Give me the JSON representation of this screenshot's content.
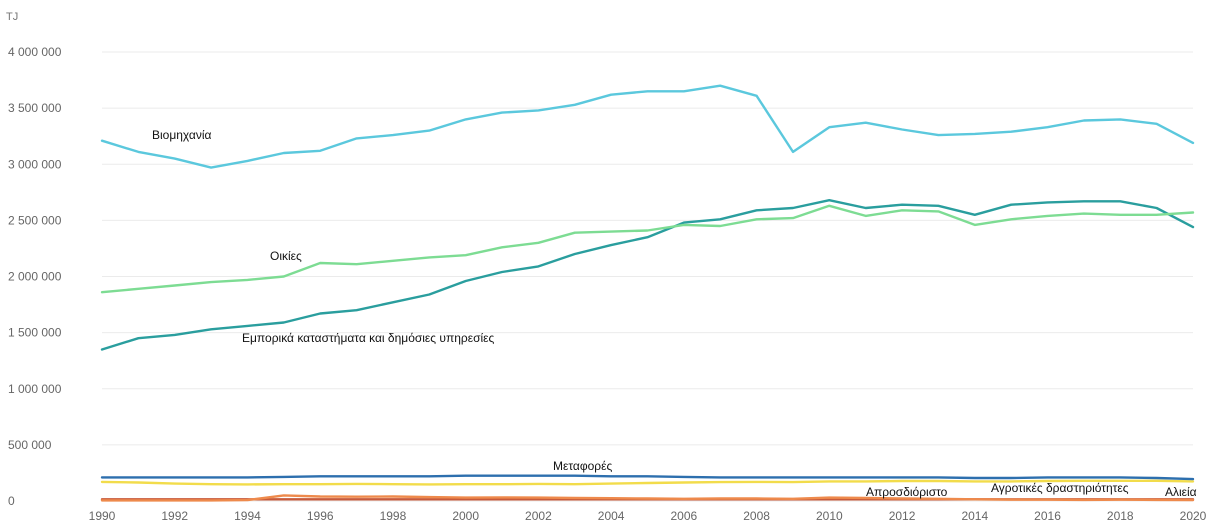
{
  "chart_data": {
    "type": "line",
    "unit_label": "TJ",
    "x": [
      1990,
      1991,
      1992,
      1993,
      1994,
      1995,
      1996,
      1997,
      1998,
      1999,
      2000,
      2001,
      2002,
      2003,
      2004,
      2005,
      2006,
      2007,
      2008,
      2009,
      2010,
      2011,
      2012,
      2013,
      2014,
      2015,
      2016,
      2017,
      2018,
      2019,
      2020
    ],
    "x_ticks": [
      "1990",
      "1992",
      "1994",
      "1996",
      "1998",
      "2000",
      "2002",
      "2004",
      "2006",
      "2008",
      "2010",
      "2012",
      "2014",
      "2016",
      "2018",
      "2020"
    ],
    "y_ticks": [
      "0",
      "500 000",
      "1 000 000",
      "1 500 000",
      "2 000 000",
      "2 500 000",
      "3 000 000",
      "3 500 000",
      "4 000 000"
    ],
    "ylim": [
      0,
      4000000
    ],
    "grid": true,
    "series": [
      {
        "name": "Βιομηχανία",
        "color": "#5bc8dd",
        "values": [
          3210000,
          3110000,
          3050000,
          2970000,
          3030000,
          3100000,
          3120000,
          3230000,
          3260000,
          3300000,
          3400000,
          3460000,
          3480000,
          3530000,
          3620000,
          3650000,
          3650000,
          3700000,
          3610000,
          3110000,
          3330000,
          3370000,
          3310000,
          3260000,
          3270000,
          3290000,
          3330000,
          3390000,
          3400000,
          3360000,
          3190000
        ]
      },
      {
        "name": "Οικίες",
        "color": "#7ddc93",
        "values": [
          1860000,
          1890000,
          1920000,
          1950000,
          1970000,
          2000000,
          2120000,
          2110000,
          2140000,
          2170000,
          2190000,
          2260000,
          2300000,
          2390000,
          2400000,
          2410000,
          2460000,
          2450000,
          2510000,
          2520000,
          2630000,
          2540000,
          2590000,
          2580000,
          2460000,
          2510000,
          2540000,
          2560000,
          2550000,
          2550000,
          2570000
        ]
      },
      {
        "name": "Εμπορικά καταστήματα και δημόσιες υπηρεσίες",
        "color": "#2a9e9e",
        "values": [
          1350000,
          1450000,
          1480000,
          1530000,
          1560000,
          1590000,
          1670000,
          1700000,
          1770000,
          1840000,
          1960000,
          2040000,
          2090000,
          2200000,
          2280000,
          2350000,
          2480000,
          2510000,
          2590000,
          2610000,
          2680000,
          2610000,
          2640000,
          2630000,
          2550000,
          2640000,
          2660000,
          2670000,
          2670000,
          2610000,
          2440000
        ]
      },
      {
        "name": "Μεταφορές",
        "color": "#2d6fae",
        "values": [
          210000,
          210000,
          210000,
          210000,
          210000,
          215000,
          220000,
          220000,
          220000,
          220000,
          225000,
          225000,
          225000,
          225000,
          220000,
          220000,
          215000,
          210000,
          210000,
          210000,
          210000,
          210000,
          210000,
          210000,
          205000,
          205000,
          210000,
          210000,
          210000,
          205000,
          195000
        ]
      },
      {
        "name": "Αγροτικές δραστηριότητες",
        "color": "#f2dc4b",
        "values": [
          170000,
          165000,
          155000,
          150000,
          148000,
          150000,
          150000,
          152000,
          150000,
          148000,
          150000,
          150000,
          152000,
          150000,
          155000,
          160000,
          165000,
          168000,
          170000,
          168000,
          175000,
          175000,
          178000,
          178000,
          175000,
          175000,
          178000,
          180000,
          180000,
          180000,
          175000
        ]
      },
      {
        "name": "Απροσδιόριστο",
        "color": "#ee8a4c",
        "values": [
          5000,
          5000,
          5000,
          5000,
          8000,
          50000,
          40000,
          38000,
          40000,
          35000,
          30000,
          32000,
          30000,
          28000,
          25000,
          22000,
          20000,
          22000,
          22000,
          20000,
          30000,
          28000,
          22000,
          20000,
          15000,
          12000,
          12000,
          10000,
          12000,
          10000,
          8000
        ]
      },
      {
        "name": "Αλιεία",
        "color": "#c75a3a",
        "values": [
          15000,
          15000,
          15000,
          15000,
          15000,
          15000,
          15000,
          15000,
          15000,
          15000,
          15000,
          15000,
          15000,
          15000,
          15000,
          15000,
          15000,
          15000,
          15000,
          15000,
          15000,
          15000,
          15000,
          15000,
          15000,
          15000,
          15000,
          15000,
          15000,
          15000,
          15000
        ]
      }
    ]
  }
}
